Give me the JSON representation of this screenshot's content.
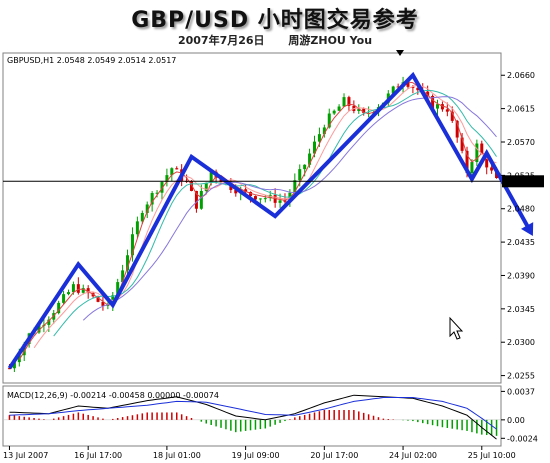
{
  "header": {
    "title": "GBP/USD 小时图交易参考",
    "date": "2007年7月26日",
    "author": "周游ZHOU You"
  },
  "chart_data": [
    {
      "type": "candlestick",
      "symbol_info": "GBPUSD,H1  2.0548 2.0549 2.0514 2.0517",
      "current_price_label": "2.0517",
      "current_price": 2.0517,
      "ylim": [
        2.0245,
        2.069
      ],
      "y_ticks": [
        "2.0660",
        "2.0615",
        "2.0570",
        "2.0525",
        "2.0480",
        "2.0435",
        "2.0390",
        "2.0345",
        "2.0300",
        "2.0255"
      ],
      "y_tick_values": [
        2.066,
        2.0615,
        2.057,
        2.0525,
        2.048,
        2.0435,
        2.039,
        2.0345,
        2.03,
        2.0255
      ],
      "x_ticks": [
        "13 Jul 2007",
        "16 Jul 17:00",
        "18 Jul 01:00",
        "19 Jul 09:00",
        "20 Jul 17:00",
        "24 Jul 02:00",
        "25 Jul 10:00"
      ],
      "x_tick_index": [
        0,
        16,
        32,
        48,
        64,
        80,
        96
      ],
      "bar_count": 100,
      "close_path": [
        [
          0,
          2.0265
        ],
        [
          4,
          2.031
        ],
        [
          8,
          2.0335
        ],
        [
          13,
          2.0375
        ],
        [
          16,
          2.0365
        ],
        [
          20,
          2.0345
        ],
        [
          23,
          2.04
        ],
        [
          27,
          2.048
        ],
        [
          33,
          2.0535
        ],
        [
          36,
          2.0515
        ],
        [
          38,
          2.0485
        ],
        [
          41,
          2.053
        ],
        [
          45,
          2.051
        ],
        [
          48,
          2.05
        ],
        [
          52,
          2.0495
        ],
        [
          56,
          2.049
        ],
        [
          60,
          2.054
        ],
        [
          64,
          2.0595
        ],
        [
          68,
          2.0625
        ],
        [
          72,
          2.0605
        ],
        [
          76,
          2.0625
        ],
        [
          80,
          2.0655
        ],
        [
          83,
          2.064
        ],
        [
          86,
          2.062
        ],
        [
          89,
          2.0615
        ],
        [
          91,
          2.0575
        ],
        [
          93,
          2.053
        ],
        [
          95,
          2.0565
        ],
        [
          97,
          2.054
        ],
        [
          99,
          2.0517
        ]
      ],
      "moving_averages": [
        {
          "color": "#e04040",
          "lag": 2
        },
        {
          "color": "#ff9a9a",
          "lag": 5
        },
        {
          "color": "#33bbaa",
          "lag": 9
        },
        {
          "color": "#8877dd",
          "lag": 15
        }
      ],
      "wave_projection": [
        [
          0,
          2.0265
        ],
        [
          14,
          2.0405
        ],
        [
          21,
          2.035
        ],
        [
          37,
          2.055
        ],
        [
          54,
          2.047
        ],
        [
          82,
          2.066
        ],
        [
          94,
          2.052
        ],
        [
          97,
          2.0555
        ],
        [
          106,
          2.0448
        ]
      ],
      "colors": {
        "bull": "#00a000",
        "bear": "#d00000",
        "wave": "#1a2fd8",
        "grid": "#808080"
      }
    },
    {
      "type": "macd",
      "label": "MACD(12,26,9) -0.00214 -0.00458 0.00000 -0.00074",
      "y_ticks": [
        "0.0037",
        "0.00",
        "-0.0024"
      ],
      "y_tick_values": [
        0.0037,
        0.0,
        -0.0024
      ],
      "ylim": [
        -0.0034,
        0.0044
      ],
      "macd_line": [
        [
          0,
          0.001
        ],
        [
          8,
          0.0008
        ],
        [
          14,
          0.0018
        ],
        [
          20,
          0.0015
        ],
        [
          28,
          0.0025
        ],
        [
          34,
          0.003
        ],
        [
          40,
          0.002
        ],
        [
          46,
          0.0005
        ],
        [
          52,
          0.0
        ],
        [
          58,
          0.0008
        ],
        [
          64,
          0.0022
        ],
        [
          70,
          0.0032
        ],
        [
          76,
          0.003
        ],
        [
          82,
          0.0028
        ],
        [
          88,
          0.0018
        ],
        [
          93,
          0.0006
        ],
        [
          96,
          -0.001
        ],
        [
          99,
          -0.0025
        ]
      ],
      "signal_line": [
        [
          0,
          0.0006
        ],
        [
          8,
          0.0008
        ],
        [
          14,
          0.0012
        ],
        [
          20,
          0.0015
        ],
        [
          28,
          0.0019
        ],
        [
          34,
          0.0024
        ],
        [
          40,
          0.0023
        ],
        [
          46,
          0.0015
        ],
        [
          52,
          0.0007
        ],
        [
          58,
          0.0006
        ],
        [
          64,
          0.0014
        ],
        [
          70,
          0.0024
        ],
        [
          76,
          0.0029
        ],
        [
          82,
          0.0029
        ],
        [
          88,
          0.0024
        ],
        [
          93,
          0.0015
        ],
        [
          96,
          0.0002
        ],
        [
          99,
          -0.0012
        ]
      ]
    }
  ]
}
